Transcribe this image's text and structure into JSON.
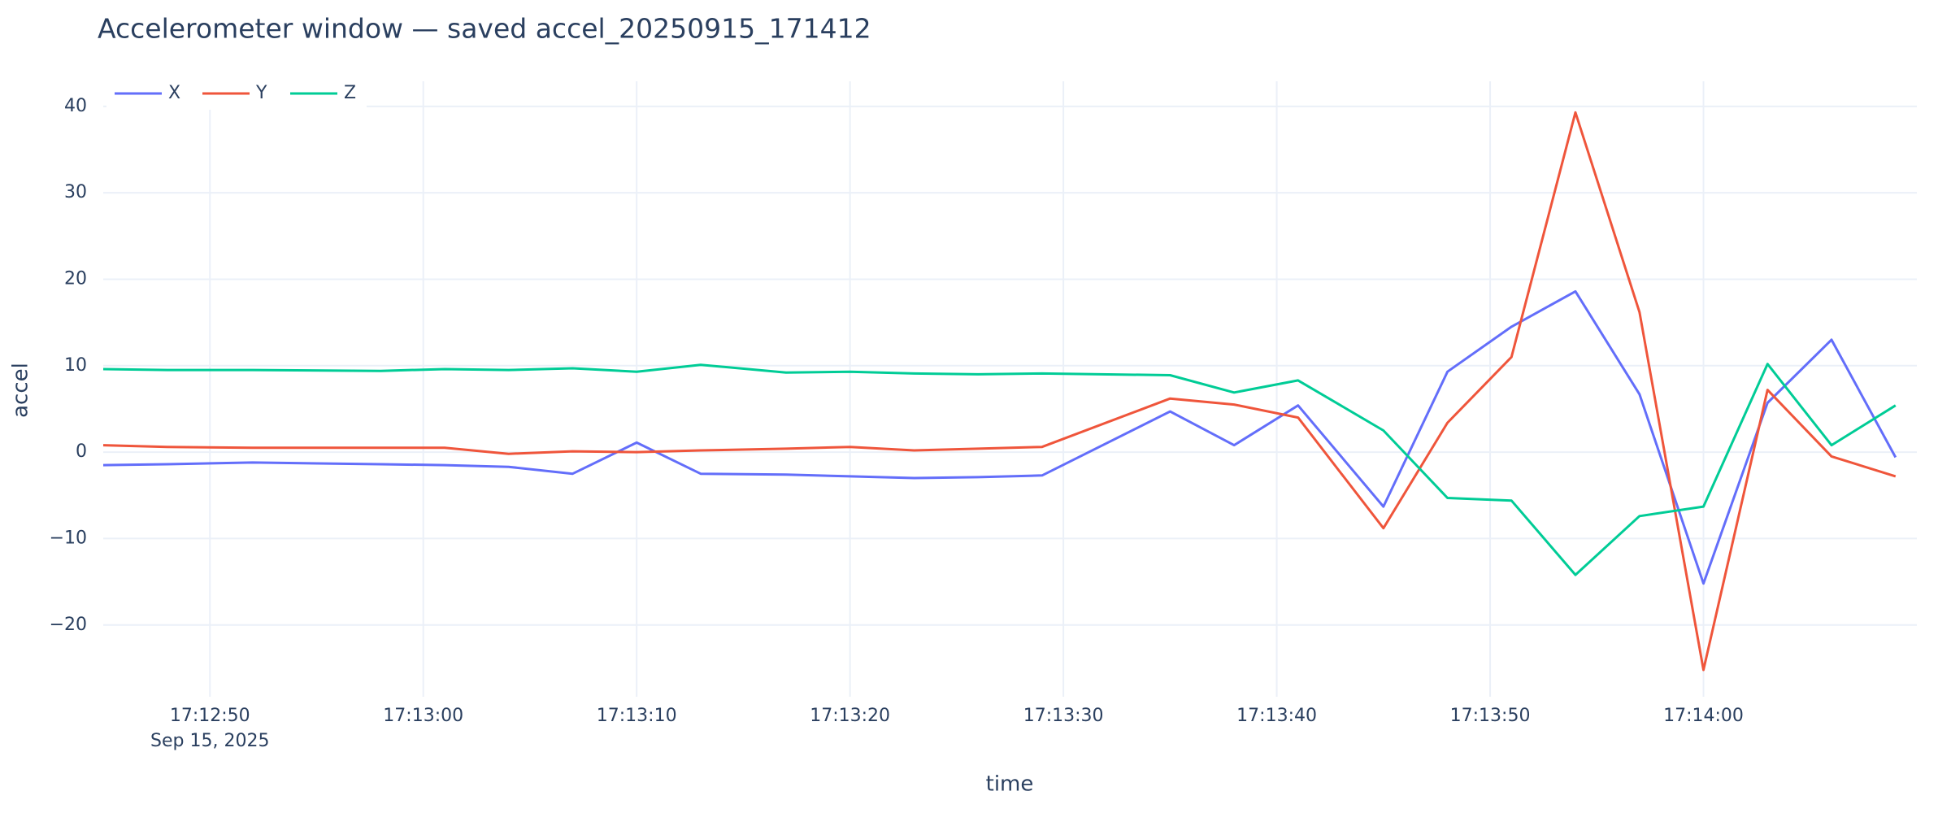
{
  "chart_data": {
    "type": "line",
    "title": "Accelerometer window — saved accel_20250915_171412",
    "x_label": "time",
    "y_label": "accel",
    "x": [
      "2025-09-15 17:12:45",
      "2025-09-15 17:12:48",
      "2025-09-15 17:12:52",
      "2025-09-15 17:12:58",
      "2025-09-15 17:13:01",
      "2025-09-15 17:13:04",
      "2025-09-15 17:13:07",
      "2025-09-15 17:13:10",
      "2025-09-15 17:13:13",
      "2025-09-15 17:13:17",
      "2025-09-15 17:13:20",
      "2025-09-15 17:13:23",
      "2025-09-15 17:13:26",
      "2025-09-15 17:13:29",
      "2025-09-15 17:13:35",
      "2025-09-15 17:13:38",
      "2025-09-15 17:13:41",
      "2025-09-15 17:13:45",
      "2025-09-15 17:13:48",
      "2025-09-15 17:13:51",
      "2025-09-15 17:13:54",
      "2025-09-15 17:13:57",
      "2025-09-15 17:14:00",
      "2025-09-15 17:14:03",
      "2025-09-15 17:14:06",
      "2025-09-15 17:14:09"
    ],
    "series": [
      {
        "name": "X",
        "color": "#636efa",
        "values": [
          -1.5,
          -1.4,
          -1.2,
          -1.4,
          -1.5,
          -1.7,
          -2.5,
          1.1,
          -2.5,
          -2.6,
          -2.8,
          -3.0,
          -2.9,
          -2.7,
          4.7,
          0.8,
          5.4,
          -6.3,
          9.3,
          14.5,
          18.6,
          6.7,
          -15.2,
          5.7,
          13.0,
          -0.6
        ]
      },
      {
        "name": "Y",
        "color": "#ef553b",
        "values": [
          0.8,
          0.6,
          0.5,
          0.5,
          0.5,
          -0.2,
          0.1,
          0.0,
          0.2,
          0.4,
          0.6,
          0.2,
          0.4,
          0.6,
          6.2,
          5.5,
          4.0,
          -8.8,
          3.4,
          11.0,
          39.3,
          16.2,
          -25.2,
          7.2,
          -0.5,
          -2.8
        ]
      },
      {
        "name": "Z",
        "color": "#00cc96",
        "values": [
          9.6,
          9.5,
          9.5,
          9.4,
          9.6,
          9.5,
          9.7,
          9.3,
          10.1,
          9.2,
          9.3,
          9.1,
          9.0,
          9.1,
          8.9,
          6.9,
          8.3,
          2.5,
          -5.3,
          -5.6,
          -14.2,
          -7.4,
          -6.3,
          10.2,
          0.8,
          5.4
        ]
      }
    ],
    "xlim": [
      "2025-09-15 17:12:45",
      "2025-09-15 17:14:10"
    ],
    "xticks": [
      {
        "value": "2025-09-15 17:12:50",
        "label": "17:12:50"
      },
      {
        "value": "2025-09-15 17:13:00",
        "label": "17:13:00"
      },
      {
        "value": "2025-09-15 17:13:10",
        "label": "17:13:10"
      },
      {
        "value": "2025-09-15 17:13:20",
        "label": "17:13:20"
      },
      {
        "value": "2025-09-15 17:13:30",
        "label": "17:13:30"
      },
      {
        "value": "2025-09-15 17:13:40",
        "label": "17:13:40"
      },
      {
        "value": "2025-09-15 17:13:50",
        "label": "17:13:50"
      },
      {
        "value": "2025-09-15 17:14:00",
        "label": "17:14:00"
      }
    ],
    "x_date_label": "Sep 15, 2025",
    "ylim": [
      -28.3,
      42.9
    ],
    "yticks": [
      {
        "value": -20,
        "label": "−20"
      },
      {
        "value": -10,
        "label": "−10"
      },
      0,
      10,
      20,
      30,
      40
    ],
    "grid": true,
    "legend": "top-left"
  }
}
